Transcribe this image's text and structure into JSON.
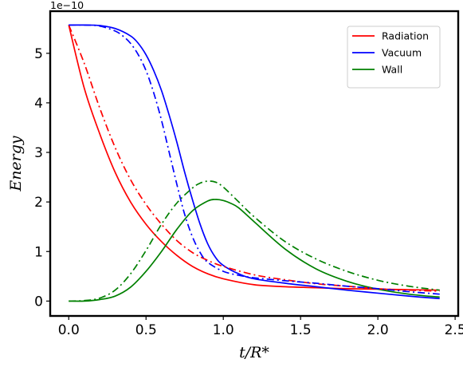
{
  "chart_data": {
    "type": "line",
    "title": "",
    "xlabel": "t/R*",
    "ylabel": "Energy",
    "y_offset_label": "1e−10",
    "y_scale": 1e-10,
    "xlim": [
      -0.12,
      2.52
    ],
    "ylim": [
      -0.3,
      5.85
    ],
    "xticks": [
      0.0,
      0.5,
      1.0,
      1.5,
      2.0,
      2.5
    ],
    "xtick_labels": [
      "0.0",
      "0.5",
      "1.0",
      "1.5",
      "2.0",
      "2.5"
    ],
    "yticks": [
      0,
      1,
      2,
      3,
      4,
      5
    ],
    "ytick_labels": [
      "0",
      "1",
      "2",
      "3",
      "4",
      "5"
    ],
    "grid": false,
    "legend_position": "top-right",
    "series": [
      {
        "name": "Radiation",
        "color": "#ff0000",
        "style": "solid",
        "x": [
          0.0,
          0.1,
          0.2,
          0.3,
          0.4,
          0.5,
          0.6,
          0.7,
          0.8,
          0.9,
          1.0,
          1.2,
          1.4,
          1.6,
          1.8,
          2.0,
          2.2,
          2.4
        ],
        "y": [
          5.57,
          4.3,
          3.38,
          2.6,
          2.0,
          1.55,
          1.2,
          0.92,
          0.7,
          0.55,
          0.45,
          0.33,
          0.29,
          0.27,
          0.25,
          0.24,
          0.23,
          0.22
        ]
      },
      {
        "name": "Vacuum",
        "color": "#0000ff",
        "style": "solid",
        "x": [
          0.0,
          0.1,
          0.2,
          0.3,
          0.4,
          0.45,
          0.5,
          0.55,
          0.6,
          0.65,
          0.7,
          0.75,
          0.8,
          0.85,
          0.9,
          0.95,
          1.0,
          1.1,
          1.2,
          1.4,
          1.6,
          1.8,
          2.0,
          2.2,
          2.4
        ],
        "y": [
          5.57,
          5.57,
          5.56,
          5.5,
          5.35,
          5.2,
          4.97,
          4.65,
          4.25,
          3.75,
          3.2,
          2.6,
          2.05,
          1.55,
          1.15,
          0.88,
          0.72,
          0.55,
          0.45,
          0.36,
          0.29,
          0.22,
          0.16,
          0.1,
          0.05
        ]
      },
      {
        "name": "Wall",
        "color": "#008000",
        "style": "solid",
        "x": [
          0.0,
          0.1,
          0.2,
          0.3,
          0.4,
          0.5,
          0.6,
          0.7,
          0.8,
          0.9,
          0.95,
          1.0,
          1.05,
          1.1,
          1.2,
          1.4,
          1.6,
          1.8,
          2.0,
          2.2,
          2.4
        ],
        "y": [
          0.0,
          0.0,
          0.03,
          0.1,
          0.28,
          0.6,
          1.0,
          1.45,
          1.82,
          2.02,
          2.05,
          2.03,
          1.97,
          1.88,
          1.6,
          1.05,
          0.65,
          0.4,
          0.24,
          0.14,
          0.08
        ]
      },
      {
        "color": "#ff0000",
        "style": "dashdot",
        "x": [
          0.0,
          0.1,
          0.2,
          0.3,
          0.4,
          0.5,
          0.6,
          0.7,
          0.8,
          0.9,
          1.0,
          1.2,
          1.4,
          1.6,
          1.8,
          2.0,
          2.2,
          2.4
        ],
        "y": [
          5.57,
          4.8,
          3.9,
          3.1,
          2.45,
          1.95,
          1.55,
          1.22,
          0.98,
          0.82,
          0.7,
          0.53,
          0.43,
          0.35,
          0.3,
          0.25,
          0.22,
          0.2
        ]
      },
      {
        "color": "#0000ff",
        "style": "dashdot",
        "x": [
          0.0,
          0.1,
          0.2,
          0.3,
          0.35,
          0.4,
          0.45,
          0.5,
          0.55,
          0.6,
          0.65,
          0.7,
          0.75,
          0.8,
          0.85,
          0.9,
          1.0,
          1.1,
          1.2,
          1.4,
          1.6,
          1.8,
          2.0,
          2.2,
          2.4
        ],
        "y": [
          5.57,
          5.57,
          5.55,
          5.45,
          5.35,
          5.2,
          4.97,
          4.65,
          4.2,
          3.65,
          3.0,
          2.35,
          1.75,
          1.3,
          0.98,
          0.78,
          0.6,
          0.52,
          0.47,
          0.41,
          0.36,
          0.3,
          0.25,
          0.19,
          0.14
        ]
      },
      {
        "color": "#008000",
        "style": "dashdot",
        "x": [
          0.0,
          0.1,
          0.2,
          0.3,
          0.4,
          0.5,
          0.6,
          0.7,
          0.8,
          0.85,
          0.9,
          0.95,
          1.0,
          1.1,
          1.2,
          1.4,
          1.6,
          1.8,
          2.0,
          2.2,
          2.4
        ],
        "y": [
          0.0,
          0.01,
          0.06,
          0.22,
          0.55,
          1.02,
          1.55,
          1.98,
          2.28,
          2.38,
          2.42,
          2.4,
          2.3,
          2.0,
          1.7,
          1.2,
          0.85,
          0.6,
          0.42,
          0.3,
          0.22
        ]
      }
    ]
  }
}
